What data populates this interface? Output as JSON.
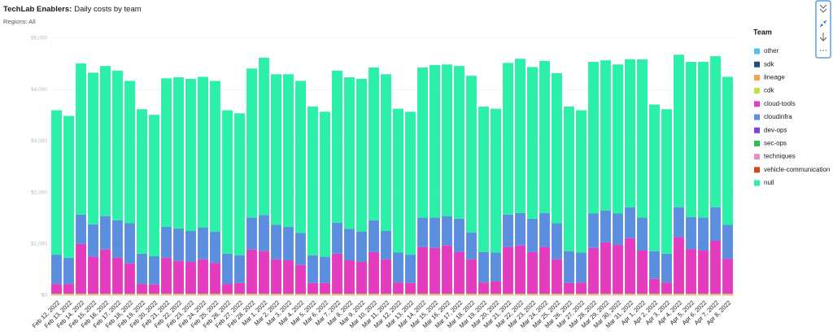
{
  "chart_data": {
    "type": "stacked-bar",
    "title": "TechLab Enablers:",
    "title_suffix": "Daily costs by team",
    "subtitle": "Regions: All",
    "legend_title": "Team",
    "grid": true,
    "ylim": [
      0,
      5000
    ],
    "yticks": [
      {
        "value": 0,
        "label": "$0"
      },
      {
        "value": 1000,
        "label": "$1,000"
      },
      {
        "value": 2000,
        "label": "$2,000"
      },
      {
        "value": 3000,
        "label": "$3,000"
      },
      {
        "value": 4000,
        "label": "$4,000"
      },
      {
        "value": 5000,
        "label": "$5,000"
      }
    ],
    "categories": [
      "Feb 12, 2022",
      "Feb 13, 2022",
      "Feb 14, 2022",
      "Feb 15, 2022",
      "Feb 16, 2022",
      "Feb 17, 2022",
      "Feb 18, 2022",
      "Feb 19, 2022",
      "Feb 20, 2022",
      "Feb 21, 2022",
      "Feb 22, 2022",
      "Feb 23, 2022",
      "Feb 24, 2022",
      "Feb 25, 2022",
      "Feb 26, 2022",
      "Feb 27, 2022",
      "Feb 28, 2022",
      "Mar 1, 2022",
      "Mar 2, 2022",
      "Mar 3, 2022",
      "Mar 4, 2022",
      "Mar 5, 2022",
      "Mar 6, 2022",
      "Mar 7, 2022",
      "Mar 8, 2022",
      "Mar 9, 2022",
      "Mar 10, 2022",
      "Mar 11, 2022",
      "Mar 12, 2022",
      "Mar 13, 2022",
      "Mar 14, 2022",
      "Mar 15, 2022",
      "Mar 16, 2022",
      "Mar 17, 2022",
      "Mar 18, 2022",
      "Mar 19, 2022",
      "Mar 20, 2022",
      "Mar 21, 2022",
      "Mar 22, 2022",
      "Mar 23, 2022",
      "Mar 24, 2022",
      "Mar 25, 2022",
      "Mar 26, 2022",
      "Mar 27, 2022",
      "Mar 28, 2022",
      "Mar 29, 2022",
      "Mar 30, 2022",
      "Mar 31, 2022",
      "Apr 1, 2022",
      "Apr 2, 2022",
      "Apr 3, 2022",
      "Apr 4, 2022",
      "Apr 5, 2022",
      "Apr 6, 2022",
      "Apr 7, 2022",
      "Apr 8, 2022"
    ],
    "series": [
      {
        "name": "other",
        "color": "#4cc3f0",
        "values": [
          0,
          0,
          0,
          0,
          0,
          0,
          0,
          0,
          0,
          0,
          0,
          0,
          0,
          0,
          0,
          0,
          0,
          0,
          0,
          0,
          0,
          0,
          0,
          0,
          0,
          0,
          0,
          0,
          0,
          0,
          0,
          0,
          0,
          0,
          0,
          0,
          0,
          0,
          0,
          0,
          0,
          0,
          0,
          0,
          0,
          0,
          0,
          0,
          0,
          0,
          0,
          0,
          0,
          0,
          0,
          0
        ]
      },
      {
        "name": "sdk",
        "color": "#1f4e79",
        "values": [
          0,
          0,
          0,
          0,
          0,
          0,
          0,
          0,
          0,
          0,
          0,
          0,
          0,
          0,
          0,
          0,
          0,
          0,
          0,
          0,
          0,
          0,
          0,
          0,
          0,
          0,
          0,
          0,
          0,
          0,
          0,
          0,
          0,
          0,
          0,
          0,
          0,
          0,
          0,
          0,
          0,
          0,
          0,
          0,
          0,
          0,
          0,
          0,
          0,
          0,
          0,
          0,
          0,
          0,
          0,
          0
        ]
      },
      {
        "name": "lineage",
        "color": "#f5a04a",
        "values": [
          20,
          20,
          20,
          20,
          20,
          20,
          20,
          20,
          20,
          20,
          20,
          20,
          20,
          20,
          20,
          20,
          20,
          20,
          20,
          20,
          20,
          20,
          20,
          20,
          20,
          20,
          20,
          20,
          20,
          20,
          20,
          20,
          20,
          20,
          20,
          20,
          20,
          20,
          20,
          20,
          20,
          20,
          20,
          20,
          20,
          20,
          20,
          20,
          20,
          20,
          20,
          20,
          20,
          20,
          20,
          20
        ]
      },
      {
        "name": "cdk",
        "color": "#c6e03a",
        "values": [
          10,
          10,
          10,
          10,
          10,
          10,
          10,
          10,
          10,
          10,
          10,
          10,
          10,
          10,
          10,
          10,
          10,
          10,
          10,
          10,
          10,
          10,
          10,
          10,
          10,
          10,
          10,
          10,
          10,
          10,
          10,
          10,
          10,
          10,
          10,
          10,
          10,
          10,
          10,
          10,
          10,
          10,
          10,
          10,
          10,
          10,
          10,
          10,
          10,
          10,
          10,
          10,
          10,
          10,
          10,
          10
        ]
      },
      {
        "name": "cloud-tools",
        "color": "#e43bbf",
        "values": [
          190,
          190,
          970,
          720,
          860,
          700,
          590,
          190,
          180,
          700,
          640,
          620,
          670,
          600,
          190,
          210,
          860,
          830,
          670,
          650,
          560,
          210,
          210,
          780,
          650,
          620,
          810,
          670,
          220,
          210,
          910,
          890,
          940,
          810,
          670,
          220,
          240,
          910,
          940,
          810,
          910,
          670,
          210,
          220,
          890,
          1000,
          950,
          1080,
          840,
          290,
          220,
          1100,
          870,
          840,
          1030,
          680
        ]
      },
      {
        "name": "cloudinfra",
        "color": "#5b8ede",
        "values": [
          570,
          510,
          570,
          630,
          650,
          730,
          780,
          590,
          550,
          600,
          630,
          600,
          620,
          610,
          590,
          540,
          620,
          700,
          670,
          650,
          620,
          540,
          510,
          600,
          610,
          590,
          620,
          550,
          580,
          550,
          570,
          590,
          570,
          650,
          520,
          590,
          560,
          630,
          630,
          650,
          660,
          700,
          620,
          580,
          670,
          620,
          610,
          600,
          640,
          540,
          560,
          580,
          620,
          640,
          650,
          660
        ]
      },
      {
        "name": "dev-ops",
        "color": "#7b3fe4",
        "values": [
          0,
          0,
          0,
          0,
          0,
          0,
          0,
          0,
          0,
          0,
          0,
          0,
          0,
          0,
          0,
          0,
          0,
          0,
          0,
          0,
          0,
          0,
          0,
          0,
          0,
          0,
          0,
          0,
          0,
          0,
          0,
          0,
          0,
          0,
          0,
          0,
          0,
          0,
          0,
          0,
          0,
          0,
          0,
          0,
          0,
          0,
          0,
          0,
          0,
          0,
          0,
          0,
          0,
          0,
          0,
          0
        ]
      },
      {
        "name": "sec-ops",
        "color": "#2ebd59",
        "values": [
          0,
          0,
          0,
          0,
          0,
          0,
          0,
          0,
          0,
          0,
          0,
          0,
          0,
          0,
          0,
          0,
          0,
          0,
          0,
          0,
          0,
          0,
          0,
          0,
          0,
          0,
          0,
          0,
          0,
          0,
          0,
          0,
          0,
          0,
          0,
          0,
          0,
          0,
          0,
          0,
          0,
          0,
          0,
          0,
          0,
          0,
          0,
          0,
          0,
          0,
          0,
          0,
          0,
          0,
          0,
          0
        ]
      },
      {
        "name": "techniques",
        "color": "#e88cc8",
        "values": [
          0,
          0,
          0,
          0,
          0,
          0,
          0,
          0,
          0,
          0,
          0,
          0,
          0,
          0,
          0,
          0,
          0,
          0,
          0,
          0,
          0,
          0,
          0,
          0,
          0,
          0,
          0,
          0,
          0,
          0,
          0,
          0,
          0,
          0,
          0,
          0,
          0,
          0,
          0,
          0,
          0,
          0,
          0,
          0,
          0,
          0,
          0,
          0,
          0,
          0,
          0,
          0,
          0,
          0,
          0,
          0
        ]
      },
      {
        "name": "vehicle-communication",
        "color": "#d9431a",
        "values": [
          0,
          0,
          0,
          0,
          0,
          0,
          0,
          0,
          0,
          0,
          0,
          0,
          0,
          0,
          0,
          0,
          0,
          0,
          0,
          0,
          0,
          0,
          0,
          0,
          0,
          0,
          0,
          0,
          0,
          0,
          0,
          0,
          0,
          0,
          0,
          0,
          0,
          0,
          0,
          0,
          0,
          0,
          0,
          0,
          0,
          0,
          0,
          0,
          0,
          0,
          0,
          0,
          0,
          0,
          0,
          0
        ]
      },
      {
        "name": "null",
        "color": "#2af0a8",
        "values": [
          2810,
          2760,
          2940,
          2950,
          2920,
          2910,
          2770,
          2810,
          2750,
          2890,
          2940,
          2960,
          2930,
          2930,
          2790,
          2760,
          2900,
          3060,
          2930,
          2970,
          2960,
          2890,
          2820,
          2960,
          2950,
          2970,
          2970,
          3050,
          2800,
          2780,
          2920,
          2970,
          2950,
          2970,
          3050,
          2830,
          2800,
          2950,
          3000,
          2950,
          2960,
          2920,
          2810,
          2770,
          2950,
          2920,
          2900,
          2880,
          3080,
          2850,
          2810,
          2970,
          3020,
          3030,
          2940,
          2880
        ]
      }
    ]
  }
}
